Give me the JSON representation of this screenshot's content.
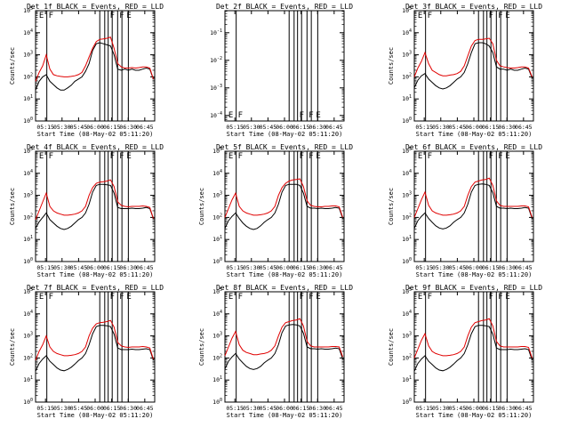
{
  "chart_data": [
    {
      "type": "line",
      "title": "Det 1f BLACK = Events, RED = LLD",
      "xlabel": "Start Time (08-May-02 05:11:20)",
      "ylabel": "Counts/sec",
      "yscale": "log",
      "ylim_exp": [
        0,
        5
      ],
      "xlim": [
        5.1,
        6.9
      ],
      "xticks": [
        "05:15",
        "05:30",
        "05:45",
        "06:00",
        "06:15",
        "06:30",
        "06:45"
      ],
      "yticks": [
        "10^0",
        "10^1",
        "10^2",
        "10^3",
        "10^4",
        "10^5"
      ],
      "has_data": true,
      "markers": [
        {
          "label": "E",
          "x": 5.125
        },
        {
          "label": "F",
          "x": 5.27
        },
        {
          "label": "F",
          "x": 6.197
        },
        {
          "label": "F",
          "x": 6.34
        },
        {
          "label": "E",
          "x": 6.448
        }
      ],
      "vlines": [
        5.27,
        6.07,
        6.145,
        6.197,
        6.258,
        6.34,
        6.405,
        6.502
      ],
      "red_y_exp": [
        1.8,
        2.2,
        2.5,
        3.0,
        2.35,
        2.1,
        2.05,
        2.02,
        2.0,
        2.0,
        2.02,
        2.05,
        2.1,
        2.2,
        2.5,
        2.9,
        3.3,
        3.6,
        3.7,
        3.72,
        3.75,
        3.8,
        3.3,
        2.6,
        2.45,
        2.4,
        2.4,
        2.42,
        2.4,
        2.42,
        2.45,
        2.45,
        2.4,
        1.9
      ],
      "black_y_exp": [
        1.4,
        1.8,
        2.0,
        2.1,
        1.8,
        1.65,
        1.5,
        1.4,
        1.4,
        1.5,
        1.62,
        1.8,
        1.9,
        2.0,
        2.25,
        2.6,
        3.2,
        3.5,
        3.55,
        3.5,
        3.45,
        3.4,
        3.0,
        2.35,
        2.3,
        2.35,
        2.3,
        2.35,
        2.3,
        2.3,
        2.35,
        2.4,
        2.35,
        1.9
      ]
    },
    {
      "type": "line",
      "title": "Det 2f BLACK = Events, RED = LLD",
      "xlabel": "Start Time (08-May-02 05:11:20)",
      "ylabel": "",
      "yscale": "log",
      "ylim_exp": [
        -4.2,
        -0.2
      ],
      "xlim": [
        5.1,
        6.9
      ],
      "xticks": [
        "05:15",
        "05:30",
        "05:45",
        "06:00",
        "06:15",
        "06:30",
        "06:45"
      ],
      "yticks": [
        "10^-4",
        "10^-3",
        "10^-2",
        "10^-1"
      ],
      "has_data": false,
      "markers": [
        {
          "label": "E",
          "x": 5.125
        },
        {
          "label": "F",
          "x": 5.27
        },
        {
          "label": "F",
          "x": 6.197
        },
        {
          "label": "F",
          "x": 6.34
        },
        {
          "label": "E",
          "x": 6.448
        }
      ],
      "vlines": [
        5.27,
        6.07,
        6.145,
        6.197,
        6.258,
        6.34,
        6.405,
        6.502
      ],
      "red_y_exp": [],
      "black_y_exp": []
    },
    {
      "type": "line",
      "title": "Det 3f BLACK = Events, RED = LLD",
      "xlabel": "Start Time (08-May-02 05:11:20)",
      "ylabel": "Counts/sec",
      "yscale": "log",
      "ylim_exp": [
        0,
        5
      ],
      "xlim": [
        5.1,
        6.9
      ],
      "xticks": [
        "05:15",
        "05:30",
        "05:45",
        "06:00",
        "06:15",
        "06:30",
        "06:45"
      ],
      "yticks": [
        "10^0",
        "10^1",
        "10^2",
        "10^3",
        "10^4",
        "10^5"
      ],
      "has_data": true,
      "markers": [
        {
          "label": "E",
          "x": 5.125
        },
        {
          "label": "F",
          "x": 5.27
        },
        {
          "label": "F",
          "x": 6.197
        },
        {
          "label": "F",
          "x": 6.34
        },
        {
          "label": "E",
          "x": 6.448
        }
      ],
      "vlines": [
        5.27,
        6.07,
        6.145,
        6.197,
        6.258,
        6.34,
        6.405,
        6.502
      ],
      "red_y_exp": [
        2.0,
        2.4,
        2.7,
        3.1,
        2.6,
        2.3,
        2.2,
        2.1,
        2.05,
        2.05,
        2.08,
        2.1,
        2.15,
        2.25,
        2.5,
        2.95,
        3.4,
        3.65,
        3.7,
        3.7,
        3.72,
        3.75,
        3.5,
        2.75,
        2.5,
        2.45,
        2.42,
        2.4,
        2.4,
        2.42,
        2.45,
        2.45,
        2.4,
        2.0
      ],
      "black_y_exp": [
        1.5,
        1.85,
        2.05,
        2.15,
        1.9,
        1.75,
        1.6,
        1.5,
        1.45,
        1.5,
        1.6,
        1.75,
        1.9,
        2.0,
        2.2,
        2.6,
        3.1,
        3.5,
        3.55,
        3.55,
        3.5,
        3.4,
        3.1,
        2.45,
        2.35,
        2.35,
        2.3,
        2.35,
        2.3,
        2.3,
        2.35,
        2.4,
        2.35,
        1.95
      ]
    },
    {
      "type": "line",
      "title": "Det 4f BLACK = Events, RED = LLD",
      "xlabel": "Start Time (08-May-02 05:11:20)",
      "ylabel": "Counts/sec",
      "yscale": "log",
      "ylim_exp": [
        0,
        5
      ],
      "xlim": [
        5.1,
        6.9
      ],
      "xticks": [
        "05:15",
        "05:30",
        "05:45",
        "06:00",
        "06:15",
        "06:30",
        "06:45"
      ],
      "yticks": [
        "10^0",
        "10^1",
        "10^2",
        "10^3",
        "10^4",
        "10^5"
      ],
      "has_data": true,
      "markers": [
        {
          "label": "E",
          "x": 5.125
        },
        {
          "label": "F",
          "x": 5.27
        },
        {
          "label": "F",
          "x": 6.197
        },
        {
          "label": "F",
          "x": 6.34
        },
        {
          "label": "E",
          "x": 6.448
        }
      ],
      "vlines": [
        5.27,
        6.07,
        6.145,
        6.197,
        6.258,
        6.34,
        6.405,
        6.502
      ],
      "red_y_exp": [
        1.9,
        2.3,
        2.7,
        3.1,
        2.5,
        2.3,
        2.2,
        2.15,
        2.1,
        2.1,
        2.12,
        2.15,
        2.2,
        2.3,
        2.5,
        3.0,
        3.35,
        3.55,
        3.6,
        3.62,
        3.65,
        3.7,
        3.4,
        2.7,
        2.55,
        2.5,
        2.48,
        2.5,
        2.5,
        2.5,
        2.52,
        2.5,
        2.45,
        1.95
      ],
      "black_y_exp": [
        1.5,
        1.8,
        2.0,
        2.2,
        1.9,
        1.75,
        1.6,
        1.5,
        1.45,
        1.5,
        1.6,
        1.75,
        1.9,
        2.0,
        2.2,
        2.6,
        3.15,
        3.45,
        3.5,
        3.5,
        3.48,
        3.45,
        3.1,
        2.45,
        2.4,
        2.4,
        2.4,
        2.42,
        2.4,
        2.4,
        2.42,
        2.45,
        2.4,
        1.95
      ]
    },
    {
      "type": "line",
      "title": "Det 5f BLACK = Events, RED = LLD",
      "xlabel": "Start Time (08-May-02 05:11:20)",
      "ylabel": "Counts/sec",
      "yscale": "log",
      "ylim_exp": [
        0,
        5
      ],
      "xlim": [
        5.1,
        6.9
      ],
      "xticks": [
        "05:15",
        "05:30",
        "05:45",
        "06:00",
        "06:15",
        "06:30",
        "06:45"
      ],
      "yticks": [
        "10^0",
        "10^1",
        "10^2",
        "10^3",
        "10^4",
        "10^5"
      ],
      "has_data": true,
      "markers": [
        {
          "label": "E",
          "x": 5.125
        },
        {
          "label": "F",
          "x": 5.27
        },
        {
          "label": "F",
          "x": 6.197
        },
        {
          "label": "F",
          "x": 6.34
        },
        {
          "label": "E",
          "x": 6.448
        }
      ],
      "vlines": [
        5.27,
        6.07,
        6.145,
        6.197,
        6.258,
        6.34,
        6.405,
        6.502
      ],
      "red_y_exp": [
        2.0,
        2.4,
        2.8,
        3.1,
        2.5,
        2.3,
        2.2,
        2.15,
        2.1,
        2.1,
        2.12,
        2.15,
        2.2,
        2.3,
        2.5,
        3.0,
        3.35,
        3.55,
        3.65,
        3.7,
        3.72,
        3.75,
        3.4,
        2.75,
        2.55,
        2.5,
        2.48,
        2.48,
        2.5,
        2.5,
        2.52,
        2.52,
        2.48,
        2.0
      ],
      "black_y_exp": [
        1.5,
        1.85,
        2.05,
        2.2,
        1.95,
        1.75,
        1.6,
        1.5,
        1.45,
        1.5,
        1.62,
        1.78,
        1.9,
        2.0,
        2.2,
        2.6,
        3.15,
        3.45,
        3.5,
        3.5,
        3.5,
        3.45,
        3.1,
        2.5,
        2.42,
        2.42,
        2.4,
        2.42,
        2.4,
        2.4,
        2.42,
        2.45,
        2.42,
        1.95
      ]
    },
    {
      "type": "line",
      "title": "Det 6f BLACK = Events, RED = LLD",
      "xlabel": "Start Time (08-May-02 05:11:20)",
      "ylabel": "Counts/sec",
      "yscale": "log",
      "ylim_exp": [
        0,
        5
      ],
      "xlim": [
        5.1,
        6.9
      ],
      "xticks": [
        "05:15",
        "05:30",
        "05:45",
        "06:00",
        "06:15",
        "06:30",
        "06:45"
      ],
      "yticks": [
        "10^0",
        "10^1",
        "10^2",
        "10^3",
        "10^4",
        "10^5"
      ],
      "has_data": true,
      "markers": [
        {
          "label": "E",
          "x": 5.125
        },
        {
          "label": "F",
          "x": 5.27
        },
        {
          "label": "F",
          "x": 6.197
        },
        {
          "label": "F",
          "x": 6.34
        },
        {
          "label": "E",
          "x": 6.448
        }
      ],
      "vlines": [
        5.27,
        6.07,
        6.145,
        6.197,
        6.258,
        6.34,
        6.405,
        6.502
      ],
      "red_y_exp": [
        2.0,
        2.4,
        2.8,
        3.15,
        2.55,
        2.3,
        2.2,
        2.15,
        2.1,
        2.1,
        2.12,
        2.15,
        2.2,
        2.3,
        2.5,
        3.0,
        3.4,
        3.6,
        3.65,
        3.7,
        3.72,
        3.78,
        3.45,
        2.75,
        2.55,
        2.5,
        2.5,
        2.5,
        2.5,
        2.5,
        2.52,
        2.52,
        2.48,
        2.0
      ],
      "black_y_exp": [
        1.5,
        1.85,
        2.05,
        2.2,
        1.95,
        1.78,
        1.62,
        1.52,
        1.48,
        1.52,
        1.62,
        1.78,
        1.9,
        2.0,
        2.2,
        2.6,
        3.15,
        3.45,
        3.5,
        3.52,
        3.5,
        3.45,
        3.12,
        2.5,
        2.42,
        2.42,
        2.4,
        2.42,
        2.4,
        2.4,
        2.42,
        2.45,
        2.42,
        1.95
      ]
    },
    {
      "type": "line",
      "title": "Det 7f BLACK = Events, RED = LLD",
      "xlabel": "Start Time (08-May-02 05:11:20)",
      "ylabel": "Counts/sec",
      "yscale": "log",
      "ylim_exp": [
        0,
        5
      ],
      "xlim": [
        5.1,
        6.9
      ],
      "xticks": [
        "05:15",
        "05:30",
        "05:45",
        "06:00",
        "06:15",
        "06:30",
        "06:45"
      ],
      "yticks": [
        "10^0",
        "10^1",
        "10^2",
        "10^3",
        "10^4",
        "10^5"
      ],
      "has_data": true,
      "markers": [
        {
          "label": "E",
          "x": 5.125
        },
        {
          "label": "F",
          "x": 5.27
        },
        {
          "label": "F",
          "x": 6.197
        },
        {
          "label": "F",
          "x": 6.34
        },
        {
          "label": "E",
          "x": 6.448
        }
      ],
      "vlines": [
        5.27,
        6.07,
        6.145,
        6.197,
        6.258,
        6.34,
        6.405,
        6.502
      ],
      "red_y_exp": [
        1.9,
        2.3,
        2.6,
        3.0,
        2.5,
        2.3,
        2.2,
        2.15,
        2.1,
        2.1,
        2.12,
        2.15,
        2.2,
        2.3,
        2.5,
        3.0,
        3.35,
        3.55,
        3.6,
        3.62,
        3.65,
        3.7,
        3.4,
        2.7,
        2.55,
        2.5,
        2.48,
        2.5,
        2.5,
        2.5,
        2.52,
        2.5,
        2.45,
        1.95
      ],
      "black_y_exp": [
        1.4,
        1.75,
        1.95,
        2.1,
        1.85,
        1.7,
        1.55,
        1.45,
        1.42,
        1.48,
        1.58,
        1.72,
        1.88,
        2.0,
        2.2,
        2.6,
        3.1,
        3.42,
        3.48,
        3.48,
        3.46,
        3.42,
        3.08,
        2.45,
        2.38,
        2.38,
        2.38,
        2.4,
        2.38,
        2.38,
        2.4,
        2.42,
        2.38,
        1.9
      ]
    },
    {
      "type": "line",
      "title": "Det 8f BLACK = Events, RED = LLD",
      "xlabel": "Start Time (08-May-02 05:11:20)",
      "ylabel": "Counts/sec",
      "yscale": "log",
      "ylim_exp": [
        0,
        5
      ],
      "xlim": [
        5.1,
        6.9
      ],
      "xticks": [
        "05:15",
        "05:30",
        "05:45",
        "06:00",
        "06:15",
        "06:30",
        "06:45"
      ],
      "yticks": [
        "10^0",
        "10^1",
        "10^2",
        "10^3",
        "10^4",
        "10^5"
      ],
      "has_data": true,
      "markers": [
        {
          "label": "E",
          "x": 5.125
        },
        {
          "label": "F",
          "x": 5.27
        },
        {
          "label": "F",
          "x": 6.197
        },
        {
          "label": "F",
          "x": 6.34
        },
        {
          "label": "E",
          "x": 6.448
        }
      ],
      "vlines": [
        5.27,
        6.07,
        6.145,
        6.197,
        6.258,
        6.34,
        6.405,
        6.502
      ],
      "red_y_exp": [
        2.1,
        2.5,
        2.9,
        3.2,
        2.6,
        2.35,
        2.25,
        2.2,
        2.15,
        2.15,
        2.18,
        2.2,
        2.25,
        2.35,
        2.55,
        3.0,
        3.4,
        3.6,
        3.65,
        3.7,
        3.72,
        3.78,
        3.45,
        2.75,
        2.55,
        2.5,
        2.5,
        2.5,
        2.5,
        2.5,
        2.52,
        2.52,
        2.5,
        2.05
      ],
      "black_y_exp": [
        1.5,
        1.85,
        2.05,
        2.2,
        1.95,
        1.78,
        1.62,
        1.52,
        1.48,
        1.52,
        1.62,
        1.78,
        1.9,
        2.0,
        2.2,
        2.6,
        3.15,
        3.45,
        3.5,
        3.52,
        3.5,
        3.45,
        3.12,
        2.5,
        2.42,
        2.42,
        2.4,
        2.42,
        2.4,
        2.4,
        2.42,
        2.45,
        2.42,
        1.95
      ]
    },
    {
      "type": "line",
      "title": "Det 9f BLACK = Events, RED = LLD",
      "xlabel": "Start Time (08-May-02 05:11:20)",
      "ylabel": "Counts/sec",
      "yscale": "log",
      "ylim_exp": [
        0,
        5
      ],
      "xlim": [
        5.1,
        6.9
      ],
      "xticks": [
        "05:15",
        "05:30",
        "05:45",
        "06:00",
        "06:15",
        "06:30",
        "06:45"
      ],
      "yticks": [
        "10^0",
        "10^1",
        "10^2",
        "10^3",
        "10^4",
        "10^5"
      ],
      "has_data": true,
      "markers": [
        {
          "label": "E",
          "x": 5.125
        },
        {
          "label": "F",
          "x": 5.27
        },
        {
          "label": "F",
          "x": 6.197
        },
        {
          "label": "F",
          "x": 6.34
        },
        {
          "label": "E",
          "x": 6.448
        }
      ],
      "vlines": [
        5.27,
        6.07,
        6.145,
        6.197,
        6.258,
        6.34,
        6.405,
        6.502
      ],
      "red_y_exp": [
        2.0,
        2.4,
        2.8,
        3.1,
        2.55,
        2.3,
        2.2,
        2.15,
        2.1,
        2.1,
        2.12,
        2.15,
        2.2,
        2.3,
        2.5,
        3.0,
        3.4,
        3.6,
        3.65,
        3.7,
        3.72,
        3.78,
        3.45,
        2.75,
        2.55,
        2.5,
        2.5,
        2.5,
        2.5,
        2.5,
        2.52,
        2.52,
        2.48,
        2.0
      ],
      "black_y_exp": [
        1.4,
        1.75,
        1.95,
        2.1,
        1.85,
        1.7,
        1.55,
        1.45,
        1.42,
        1.48,
        1.58,
        1.72,
        1.88,
        2.0,
        2.2,
        2.6,
        3.1,
        3.42,
        3.48,
        3.48,
        3.46,
        3.42,
        3.08,
        2.45,
        2.38,
        2.38,
        2.38,
        2.4,
        2.38,
        2.38,
        2.4,
        2.42,
        2.38,
        1.9
      ]
    }
  ]
}
